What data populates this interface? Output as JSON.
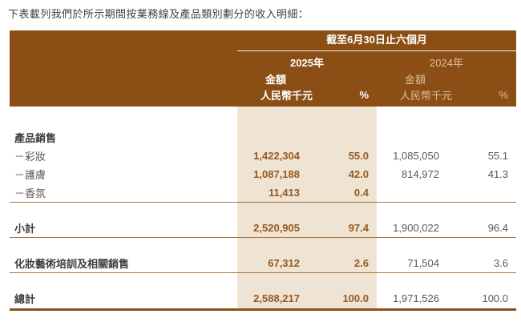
{
  "intro": "下表載列我們於所示期間按業務線及產品類別劃分的收入明細：",
  "table": {
    "period_header": "截至6月30日止六個月",
    "col2025": {
      "year": "2025年",
      "amount_label": "金額",
      "unit": "人民幣千元",
      "pct_label": "%"
    },
    "col2024": {
      "year": "2024年",
      "amount_label": "金額",
      "unit": "人民幣千元",
      "pct_label": "%"
    },
    "rows": [
      {
        "type": "spacer",
        "size": "lg"
      },
      {
        "type": "data",
        "label": "產品銷售",
        "bold": true,
        "v": [
          "",
          "",
          "",
          ""
        ]
      },
      {
        "type": "data",
        "label": "－彩妝",
        "v": [
          "1,422,304",
          "55.0",
          "1,085,050",
          "55.1"
        ]
      },
      {
        "type": "data",
        "label": "－護膚",
        "v": [
          "1,087,188",
          "42.0",
          "814,972",
          "41.3"
        ]
      },
      {
        "type": "data",
        "label": "－香氛",
        "v": [
          "11,413",
          "0.4",
          "",
          ""
        ],
        "rule": "thin"
      },
      {
        "type": "spacer"
      },
      {
        "type": "data",
        "label": "小計",
        "bold": true,
        "v": [
          "2,520,905",
          "97.4",
          "1,900,022",
          "96.4"
        ],
        "rule": "thin"
      },
      {
        "type": "spacer"
      },
      {
        "type": "data",
        "label": "化妝藝術培訓及相關銷售",
        "bold": true,
        "v": [
          "67,312",
          "2.6",
          "71,504",
          "3.6"
        ],
        "rule": "thin"
      },
      {
        "type": "spacer"
      },
      {
        "type": "data",
        "label": "總計",
        "bold": true,
        "v": [
          "2,588,217",
          "100.0",
          "1,971,526",
          "100.0"
        ],
        "rule": "thick"
      }
    ]
  },
  "colors": {
    "header_bg": "#8B4F16",
    "header_text_2025": "#FFFFFF",
    "header_text_2024": "#DCC09A",
    "highlight_band": "#EFE3D3",
    "value_2025": "#96591F",
    "value_2024": "#57585A",
    "rule": "#A9763F",
    "rule_heavy": "#8B5018",
    "text": "#414143"
  }
}
